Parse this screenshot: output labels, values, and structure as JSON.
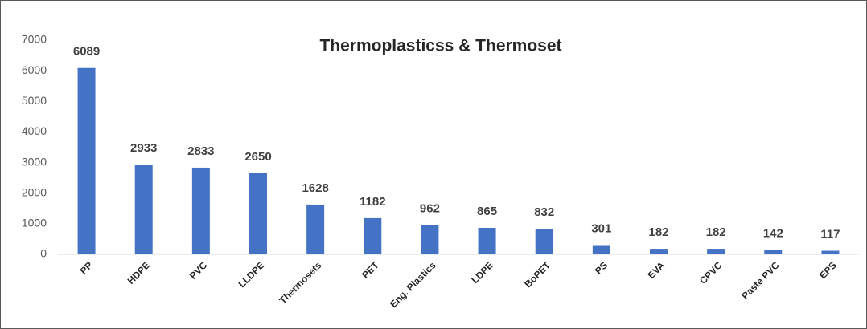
{
  "chart_data": {
    "type": "bar",
    "title": "Thermoplasticss & Thermoset",
    "categories": [
      "PP",
      "HDPE",
      "PVC",
      "LLDPE",
      "Thermosets",
      "PET",
      "Eng. Plastics",
      "LDPE",
      "BoPET",
      "PS",
      "EVA",
      "CPVC",
      "Paste PVC",
      "EPS"
    ],
    "values": [
      6089,
      2933,
      2833,
      2650,
      1628,
      1182,
      962,
      865,
      832,
      301,
      182,
      182,
      142,
      117
    ],
    "color": "#4472c4",
    "ylim": [
      0,
      7000
    ],
    "yticks": [
      0,
      1000,
      2000,
      3000,
      4000,
      5000,
      6000,
      7000
    ],
    "grid": false
  }
}
